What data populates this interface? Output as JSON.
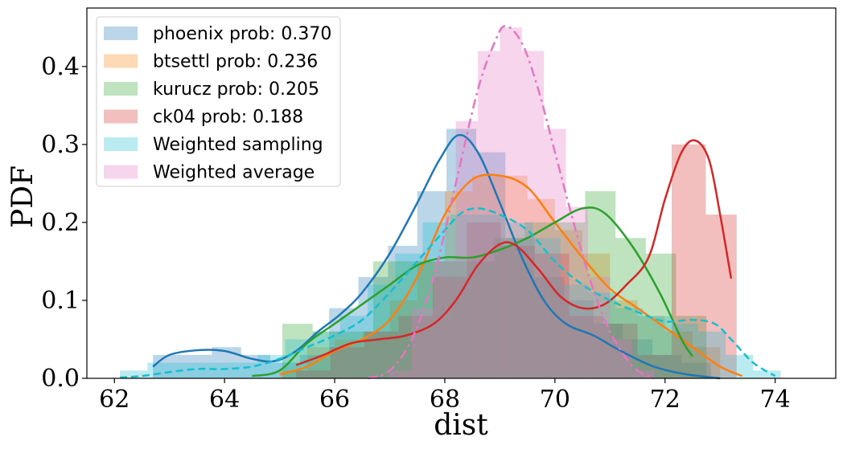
{
  "chart_data": {
    "type": "histogram+kde",
    "xlabel": "dist",
    "ylabel": "PDF",
    "xlim": [
      61.5,
      75.1
    ],
    "ylim": [
      0,
      0.475
    ],
    "x_ticks": [
      "62",
      "64",
      "66",
      "68",
      "70",
      "72",
      "74"
    ],
    "y_ticks": [
      "0.0",
      "0.1",
      "0.2",
      "0.3",
      "0.4"
    ],
    "legend_position": "top-left",
    "series": [
      {
        "name": "phoenix prob: 0.370",
        "color": "#1f77b4",
        "line_style": "solid",
        "bin_edges": [
          62.7,
          63.23,
          63.77,
          64.3,
          64.83,
          65.37,
          65.9,
          66.43,
          66.97,
          67.5,
          68.03,
          68.57,
          69.1,
          69.63,
          70.17,
          70.7,
          71.23,
          71.77,
          72.3,
          72.83
        ],
        "hist": [
          0.03,
          0.03,
          0.04,
          0.03,
          0.02,
          0.03,
          0.09,
          0.13,
          0.17,
          0.24,
          0.32,
          0.29,
          0.18,
          0.13,
          0.1,
          0.07,
          0.05,
          0.03,
          0.02
        ],
        "kde": [
          [
            62.7,
            0.015
          ],
          [
            63.0,
            0.03
          ],
          [
            63.5,
            0.036
          ],
          [
            64.0,
            0.035
          ],
          [
            64.5,
            0.025
          ],
          [
            64.9,
            0.022
          ],
          [
            65.3,
            0.035
          ],
          [
            65.7,
            0.06
          ],
          [
            66.1,
            0.082
          ],
          [
            66.5,
            0.11
          ],
          [
            67.0,
            0.16
          ],
          [
            67.5,
            0.225
          ],
          [
            67.9,
            0.28
          ],
          [
            68.25,
            0.312
          ],
          [
            68.6,
            0.29
          ],
          [
            69.0,
            0.225
          ],
          [
            69.4,
            0.155
          ],
          [
            69.8,
            0.1
          ],
          [
            70.2,
            0.07
          ],
          [
            70.7,
            0.055
          ],
          [
            71.2,
            0.035
          ],
          [
            71.8,
            0.015
          ],
          [
            72.4,
            0.005
          ],
          [
            73.0,
            0.0
          ]
        ]
      },
      {
        "name": "btsettl prob: 0.236",
        "color": "#ff7f0e",
        "line_style": "solid",
        "bin_edges": [
          65.0,
          65.5,
          66.0,
          66.5,
          67.0,
          67.5,
          68.0,
          68.5,
          69.0,
          69.5,
          70.0,
          70.5,
          71.0,
          71.5,
          72.0,
          72.5,
          73.0
        ],
        "hist": [
          0.01,
          0.04,
          0.05,
          0.06,
          0.1,
          0.15,
          0.24,
          0.26,
          0.26,
          0.23,
          0.19,
          0.16,
          0.1,
          0.08,
          0.06,
          0.04
        ],
        "kde": [
          [
            65.0,
            0.005
          ],
          [
            65.5,
            0.015
          ],
          [
            66.0,
            0.035
          ],
          [
            66.5,
            0.05
          ],
          [
            67.0,
            0.075
          ],
          [
            67.5,
            0.13
          ],
          [
            68.0,
            0.21
          ],
          [
            68.5,
            0.255
          ],
          [
            69.0,
            0.26
          ],
          [
            69.5,
            0.245
          ],
          [
            70.0,
            0.2
          ],
          [
            70.5,
            0.155
          ],
          [
            71.0,
            0.115
          ],
          [
            71.5,
            0.09
          ],
          [
            72.0,
            0.065
          ],
          [
            72.5,
            0.04
          ],
          [
            73.0,
            0.015
          ],
          [
            73.4,
            0.003
          ]
        ]
      },
      {
        "name": "kurucz prob: 0.205",
        "color": "#2ca02c",
        "line_style": "solid",
        "bin_edges": [
          64.5,
          65.05,
          65.6,
          66.15,
          66.7,
          67.25,
          67.8,
          68.35,
          68.9,
          69.45,
          70.0,
          70.55,
          71.1,
          71.65,
          72.2,
          72.75
        ],
        "hist": [
          0.0,
          0.07,
          0.06,
          0.06,
          0.15,
          0.15,
          0.15,
          0.15,
          0.18,
          0.2,
          0.2,
          0.24,
          0.18,
          0.16,
          0.08
        ],
        "kde": [
          [
            64.5,
            0.003
          ],
          [
            65.0,
            0.01
          ],
          [
            65.5,
            0.045
          ],
          [
            66.0,
            0.07
          ],
          [
            66.5,
            0.095
          ],
          [
            67.0,
            0.12
          ],
          [
            67.5,
            0.145
          ],
          [
            68.0,
            0.155
          ],
          [
            68.5,
            0.155
          ],
          [
            69.0,
            0.165
          ],
          [
            69.5,
            0.18
          ],
          [
            70.0,
            0.2
          ],
          [
            70.5,
            0.218
          ],
          [
            70.9,
            0.212
          ],
          [
            71.4,
            0.17
          ],
          [
            71.9,
            0.11
          ],
          [
            72.3,
            0.05
          ],
          [
            72.5,
            0.028
          ]
        ]
      },
      {
        "name": "ck04 prob: 0.188",
        "color": "#d62728",
        "line_style": "solid",
        "bin_edges": [
          65.3,
          65.92,
          66.54,
          67.16,
          67.78,
          68.4,
          69.02,
          69.64,
          70.26,
          70.88,
          71.5,
          72.12,
          72.74,
          73.3
        ],
        "hist": [
          0.01,
          0.04,
          0.06,
          0.08,
          0.13,
          0.2,
          0.17,
          0.16,
          0.08,
          0.07,
          0.03,
          0.3,
          0.21
        ],
        "kde": [
          [
            65.3,
            0.017
          ],
          [
            65.8,
            0.03
          ],
          [
            66.3,
            0.045
          ],
          [
            66.8,
            0.05
          ],
          [
            67.3,
            0.055
          ],
          [
            67.8,
            0.07
          ],
          [
            68.2,
            0.1
          ],
          [
            68.6,
            0.145
          ],
          [
            69.0,
            0.172
          ],
          [
            69.3,
            0.17
          ],
          [
            69.7,
            0.14
          ],
          [
            70.1,
            0.105
          ],
          [
            70.5,
            0.09
          ],
          [
            70.9,
            0.095
          ],
          [
            71.3,
            0.12
          ],
          [
            71.7,
            0.155
          ],
          [
            72.0,
            0.23
          ],
          [
            72.3,
            0.29
          ],
          [
            72.55,
            0.305
          ],
          [
            72.8,
            0.28
          ],
          [
            73.0,
            0.21
          ],
          [
            73.2,
            0.128
          ]
        ]
      },
      {
        "name": "Weighted sampling",
        "color": "#17becf",
        "line_style": "dashed",
        "bin_edges": [
          62.1,
          62.6,
          63.1,
          63.6,
          64.1,
          64.6,
          65.1,
          65.6,
          66.1,
          66.6,
          67.1,
          67.6,
          68.1,
          68.6,
          69.1,
          69.6,
          70.1,
          70.6,
          71.1,
          71.6,
          72.1,
          72.6,
          73.1,
          73.6,
          74.1
        ],
        "hist": [
          0.01,
          0.02,
          0.02,
          0.02,
          0.02,
          0.03,
          0.05,
          0.06,
          0.08,
          0.12,
          0.16,
          0.2,
          0.21,
          0.21,
          0.2,
          0.18,
          0.12,
          0.11,
          0.09,
          0.08,
          0.07,
          0.06,
          0.03,
          0.01
        ],
        "kde": [
          [
            62.1,
            0.001
          ],
          [
            62.5,
            0.003
          ],
          [
            63.0,
            0.008
          ],
          [
            63.5,
            0.012
          ],
          [
            64.0,
            0.012
          ],
          [
            64.5,
            0.015
          ],
          [
            65.0,
            0.025
          ],
          [
            65.5,
            0.04
          ],
          [
            66.0,
            0.055
          ],
          [
            66.5,
            0.075
          ],
          [
            67.0,
            0.11
          ],
          [
            67.5,
            0.15
          ],
          [
            68.0,
            0.19
          ],
          [
            68.3,
            0.212
          ],
          [
            68.6,
            0.218
          ],
          [
            69.0,
            0.21
          ],
          [
            69.5,
            0.19
          ],
          [
            70.0,
            0.15
          ],
          [
            70.5,
            0.12
          ],
          [
            71.0,
            0.1
          ],
          [
            71.5,
            0.085
          ],
          [
            72.0,
            0.073
          ],
          [
            72.5,
            0.075
          ],
          [
            72.9,
            0.07
          ],
          [
            73.2,
            0.05
          ],
          [
            73.6,
            0.02
          ],
          [
            74.0,
            0.003
          ]
        ]
      },
      {
        "name": "Weighted average",
        "color": "#e377c2",
        "line_style": "dashdot",
        "bin_edges": [
          67.0,
          67.4,
          67.8,
          68.2,
          68.6,
          69.0,
          69.4,
          69.8,
          70.2,
          70.6,
          71.0,
          71.4,
          71.8
        ],
        "hist": [
          0.01,
          0.09,
          0.15,
          0.33,
          0.42,
          0.45,
          0.42,
          0.32,
          0.22,
          0.13,
          0.05,
          0.01
        ],
        "kde": [
          [
            66.6,
            0.0
          ],
          [
            67.0,
            0.01
          ],
          [
            67.4,
            0.05
          ],
          [
            67.8,
            0.13
          ],
          [
            68.2,
            0.25
          ],
          [
            68.6,
            0.37
          ],
          [
            68.9,
            0.43
          ],
          [
            69.1,
            0.452
          ],
          [
            69.4,
            0.43
          ],
          [
            69.7,
            0.37
          ],
          [
            70.0,
            0.29
          ],
          [
            70.3,
            0.21
          ],
          [
            70.6,
            0.135
          ],
          [
            70.9,
            0.075
          ],
          [
            71.2,
            0.035
          ],
          [
            71.5,
            0.01
          ],
          [
            71.8,
            0.0
          ]
        ]
      }
    ]
  }
}
